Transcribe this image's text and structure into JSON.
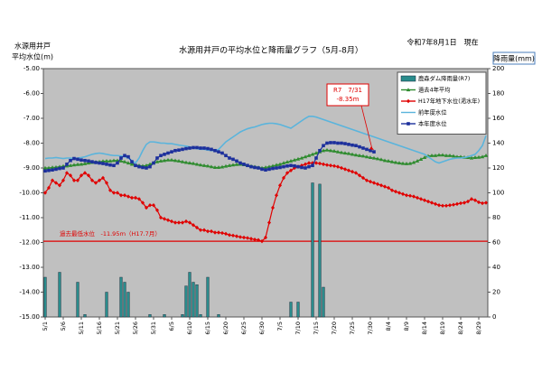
{
  "chart_data": {
    "type": "line",
    "title": "水源用井戸の平均水位と降雨量グラフ（5月-8月）",
    "date_note": "令和7年8月1日　現在",
    "y_label": [
      "水源用井戸",
      "平均水位(m)"
    ],
    "y2_label": "降雨量(mm)",
    "ylim": [
      -15,
      -5
    ],
    "yticks": [
      {
        "value": -5,
        "label": "-5.00"
      },
      {
        "value": -6,
        "label": "-6.00"
      },
      {
        "value": -7,
        "label": "-7.00"
      },
      {
        "value": -8,
        "label": "-8.00"
      },
      {
        "value": -9,
        "label": "-9.00"
      },
      {
        "value": -10,
        "label": "-10.00"
      },
      {
        "value": -11,
        "label": "-11.00"
      },
      {
        "value": -12,
        "label": "-12.00"
      },
      {
        "value": -13,
        "label": "-13.00"
      },
      {
        "value": -14,
        "label": "-14.00"
      },
      {
        "value": -15,
        "label": "-15.00"
      }
    ],
    "y2lim": [
      0,
      200
    ],
    "y2ticks": [
      0,
      20,
      40,
      60,
      80,
      100,
      120,
      140,
      160,
      180,
      200
    ],
    "grid": false,
    "background": "#c0c0c0",
    "legend": "upper right",
    "reference": {
      "value": -11.95,
      "label": "過去最低水位　-11.95ｍ（H17.7月）",
      "color": "#e00000"
    },
    "annotation": {
      "lines": [
        "R7　7/31",
        "-8.35m"
      ],
      "series": 4,
      "index": 91
    },
    "categories": [
      "5/1",
      null,
      null,
      null,
      null,
      "5/6",
      null,
      null,
      null,
      null,
      "5/11",
      null,
      null,
      null,
      null,
      "5/16",
      null,
      null,
      null,
      null,
      "5/21",
      null,
      null,
      null,
      null,
      "5/26",
      null,
      null,
      null,
      null,
      "5/31",
      null,
      null,
      null,
      null,
      "6/5",
      null,
      null,
      null,
      null,
      "6/10",
      null,
      null,
      null,
      null,
      "6/15",
      null,
      null,
      null,
      null,
      "6/20",
      null,
      null,
      null,
      null,
      "6/25",
      null,
      null,
      null,
      null,
      "6/30",
      null,
      null,
      null,
      null,
      "7/5",
      null,
      null,
      null,
      null,
      "7/10",
      null,
      null,
      null,
      null,
      "7/15",
      null,
      null,
      null,
      null,
      "7/20",
      null,
      null,
      null,
      null,
      "7/25",
      null,
      null,
      null,
      null,
      "7/30",
      null,
      null,
      null,
      null,
      "8/4",
      null,
      null,
      null,
      null,
      "8/9",
      null,
      null,
      null,
      null,
      "8/14",
      null,
      null,
      null,
      null,
      "8/19",
      null,
      null,
      null,
      null,
      "8/24",
      null,
      null,
      null,
      null,
      "8/29",
      null,
      null
    ],
    "series": [
      {
        "name": "鹿森ダム降雨量(R7)",
        "type": "bar",
        "axis": "y2",
        "color": "#2a8c8c",
        "values": [
          32,
          0,
          0,
          0,
          36,
          0,
          0,
          0,
          0,
          28,
          0,
          2,
          0,
          0,
          0,
          0,
          0,
          20,
          0,
          0,
          0,
          32,
          28,
          20,
          0,
          0,
          0,
          0,
          0,
          2,
          0,
          0,
          0,
          2,
          0,
          0,
          0,
          0,
          2,
          25,
          36,
          28,
          26,
          2,
          0,
          32,
          0,
          0,
          2,
          0,
          0,
          0,
          0,
          0,
          0,
          0,
          0,
          0,
          0,
          0,
          0,
          0,
          0,
          0,
          0,
          0,
          0,
          0,
          12,
          0,
          12,
          0,
          0,
          0,
          108,
          0,
          107,
          24,
          0,
          0,
          0,
          0,
          0,
          0,
          0,
          0,
          0,
          0,
          0,
          0,
          0,
          0,
          0,
          0,
          0,
          0,
          0,
          0,
          0,
          0,
          0,
          0,
          0,
          0,
          0,
          0,
          0,
          0,
          0,
          0,
          0,
          0,
          0,
          0,
          0,
          0,
          0,
          0,
          0,
          0,
          0,
          0,
          0
        ]
      },
      {
        "name": "過去4年平均",
        "type": "line",
        "color": "#2e8b2e",
        "marker": "triangle",
        "values": [
          -9.0,
          -9.0,
          -8.98,
          -8.97,
          -8.95,
          -8.93,
          -8.92,
          -8.9,
          -8.88,
          -8.86,
          -8.85,
          -8.83,
          -8.8,
          -8.78,
          -8.76,
          -8.75,
          -8.73,
          -8.72,
          -8.72,
          -8.7,
          -8.7,
          -8.72,
          -8.75,
          -8.8,
          -8.85,
          -8.88,
          -8.9,
          -8.92,
          -8.9,
          -8.85,
          -8.8,
          -8.75,
          -8.72,
          -8.7,
          -8.68,
          -8.68,
          -8.7,
          -8.72,
          -8.75,
          -8.78,
          -8.8,
          -8.82,
          -8.85,
          -8.88,
          -8.9,
          -8.92,
          -8.95,
          -8.98,
          -8.98,
          -8.96,
          -8.93,
          -8.9,
          -8.88,
          -8.86,
          -8.85,
          -8.87,
          -8.9,
          -8.93,
          -8.95,
          -8.98,
          -9.0,
          -8.98,
          -8.95,
          -8.92,
          -8.88,
          -8.85,
          -8.8,
          -8.76,
          -8.72,
          -8.68,
          -8.64,
          -8.6,
          -8.55,
          -8.5,
          -8.45,
          -8.4,
          -8.35,
          -8.3,
          -8.28,
          -8.3,
          -8.32,
          -8.35,
          -8.38,
          -8.4,
          -8.42,
          -8.45,
          -8.48,
          -8.5,
          -8.52,
          -8.55,
          -8.58,
          -8.6,
          -8.63,
          -8.66,
          -8.7,
          -8.72,
          -8.75,
          -8.78,
          -8.8,
          -8.82,
          -8.83,
          -8.82,
          -8.78,
          -8.72,
          -8.65,
          -8.58,
          -8.52,
          -8.5,
          -8.5,
          -8.48,
          -8.48,
          -8.5,
          -8.5,
          -8.52,
          -8.55,
          -8.55,
          -8.57,
          -8.58,
          -8.6,
          -8.58,
          -8.57,
          -8.55,
          -8.5
        ]
      },
      {
        "name": "H17年地下水位(渇水年)",
        "type": "line",
        "color": "#e00000",
        "marker": "diamond",
        "values": [
          -10.0,
          -9.8,
          -9.5,
          -9.6,
          -9.7,
          -9.5,
          -9.2,
          -9.3,
          -9.5,
          -9.5,
          -9.3,
          -9.2,
          -9.3,
          -9.5,
          -9.6,
          -9.5,
          -9.4,
          -9.6,
          -9.9,
          -10.0,
          -10.0,
          -10.1,
          -10.1,
          -10.15,
          -10.2,
          -10.2,
          -10.25,
          -10.4,
          -10.6,
          -10.5,
          -10.5,
          -10.7,
          -11.0,
          -11.05,
          -11.1,
          -11.15,
          -11.2,
          -11.2,
          -11.2,
          -11.15,
          -11.2,
          -11.3,
          -11.4,
          -11.5,
          -11.5,
          -11.55,
          -11.55,
          -11.6,
          -11.6,
          -11.62,
          -11.65,
          -11.7,
          -11.72,
          -11.75,
          -11.78,
          -11.8,
          -11.82,
          -11.85,
          -11.88,
          -11.9,
          -11.95,
          -11.8,
          -11.2,
          -10.6,
          -10.1,
          -9.7,
          -9.4,
          -9.2,
          -9.1,
          -9.0,
          -8.95,
          -8.9,
          -8.85,
          -8.8,
          -8.8,
          -8.8,
          -8.82,
          -8.85,
          -8.88,
          -8.9,
          -8.92,
          -8.95,
          -9.0,
          -9.05,
          -9.1,
          -9.15,
          -9.2,
          -9.3,
          -9.4,
          -9.5,
          -9.55,
          -9.6,
          -9.65,
          -9.7,
          -9.75,
          -9.8,
          -9.9,
          -9.95,
          -10.0,
          -10.05,
          -10.1,
          -10.12,
          -10.15,
          -10.2,
          -10.25,
          -10.3,
          -10.35,
          -10.4,
          -10.45,
          -10.5,
          -10.52,
          -10.52,
          -10.5,
          -10.48,
          -10.45,
          -10.42,
          -10.4,
          -10.35,
          -10.25,
          -10.3,
          -10.38,
          -10.42,
          -10.4
        ]
      },
      {
        "name": "前年度水位",
        "type": "line",
        "color": "#5ab4dc",
        "marker": "none",
        "values": [
          -8.62,
          -8.6,
          -8.6,
          -8.58,
          -8.6,
          -8.62,
          -8.6,
          -8.6,
          -8.62,
          -8.6,
          -8.58,
          -8.55,
          -8.5,
          -8.45,
          -8.42,
          -8.4,
          -8.42,
          -8.45,
          -8.48,
          -8.5,
          -8.5,
          -8.52,
          -8.55,
          -8.6,
          -8.7,
          -8.8,
          -8.6,
          -8.3,
          -8.05,
          -7.95,
          -7.95,
          -7.97,
          -8.0,
          -8.0,
          -8.02,
          -8.02,
          -8.05,
          -8.08,
          -8.1,
          -8.12,
          -8.15,
          -8.2,
          -8.22,
          -8.25,
          -8.25,
          -8.28,
          -8.3,
          -8.3,
          -8.25,
          -8.1,
          -7.95,
          -7.85,
          -7.75,
          -7.65,
          -7.55,
          -7.48,
          -7.42,
          -7.38,
          -7.35,
          -7.3,
          -7.25,
          -7.22,
          -7.2,
          -7.2,
          -7.22,
          -7.25,
          -7.3,
          -7.35,
          -7.4,
          -7.3,
          -7.2,
          -7.1,
          -7.0,
          -6.92,
          -6.92,
          -6.95,
          -7.0,
          -7.05,
          -7.1,
          -7.15,
          -7.2,
          -7.25,
          -7.3,
          -7.35,
          -7.4,
          -7.45,
          -7.5,
          -7.55,
          -7.6,
          -7.65,
          -7.7,
          -7.75,
          -7.8,
          -7.85,
          -7.9,
          -7.95,
          -8.0,
          -8.05,
          -8.1,
          -8.15,
          -8.2,
          -8.25,
          -8.3,
          -8.35,
          -8.4,
          -8.45,
          -8.55,
          -8.65,
          -8.75,
          -8.8,
          -8.75,
          -8.7,
          -8.65,
          -8.62,
          -8.6,
          -8.6,
          -8.58,
          -8.55,
          -8.5,
          -8.45,
          -8.3,
          -8.1,
          -7.7
        ]
      },
      {
        "name": "本年度水位",
        "type": "line",
        "color": "#1c2f9c",
        "marker": "square",
        "values": [
          -9.12,
          -9.1,
          -9.08,
          -9.05,
          -9.02,
          -9.0,
          -8.85,
          -8.7,
          -8.62,
          -8.65,
          -8.68,
          -8.7,
          -8.72,
          -8.75,
          -8.78,
          -8.8,
          -8.82,
          -8.85,
          -8.88,
          -8.9,
          -8.8,
          -8.6,
          -8.5,
          -8.55,
          -8.75,
          -8.9,
          -8.95,
          -8.98,
          -9.0,
          -8.95,
          -8.8,
          -8.6,
          -8.5,
          -8.45,
          -8.4,
          -8.35,
          -8.3,
          -8.28,
          -8.25,
          -8.22,
          -8.2,
          -8.18,
          -8.18,
          -8.2,
          -8.2,
          -8.22,
          -8.25,
          -8.3,
          -8.35,
          -8.4,
          -8.5,
          -8.6,
          -8.65,
          -8.72,
          -8.8,
          -8.85,
          -8.9,
          -8.95,
          -8.98,
          -9.0,
          -9.05,
          -9.08,
          -9.05,
          -9.02,
          -9.0,
          -8.98,
          -8.95,
          -8.92,
          -8.9,
          -8.92,
          -8.95,
          -8.98,
          -9.0,
          -8.95,
          -8.9,
          -8.6,
          -8.3,
          -8.1,
          -8.0,
          -7.98,
          -7.98,
          -8.0,
          -8.0,
          -8.02,
          -8.05,
          -8.08,
          -8.1,
          -8.15,
          -8.2,
          -8.25,
          -8.3,
          -8.35,
          null,
          null,
          null,
          null,
          null,
          null,
          null,
          null,
          null,
          null,
          null,
          null,
          null,
          null,
          null,
          null,
          null,
          null,
          null,
          null,
          null,
          null,
          null,
          null,
          null,
          null,
          null,
          null,
          null,
          null,
          null
        ]
      }
    ]
  }
}
